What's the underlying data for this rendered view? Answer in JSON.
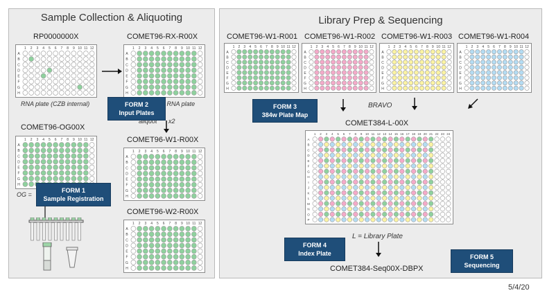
{
  "colors": {
    "green": "#8fd19e",
    "pink": "#f4aac9",
    "yellow": "#fbf3a3",
    "blue": "#b4dcf3",
    "empty": "#ffffff",
    "form_bg": "#1f4e79"
  },
  "left_panel": {
    "title": "Sample Collection & Aliquoting"
  },
  "right_panel": {
    "title": "Library Prep & Sequencing"
  },
  "plates": {
    "rp": {
      "label": "RP0000000X",
      "caption": "RNA plate (CZB internal)"
    },
    "rx": {
      "label": "COMET96-RX-R00X",
      "caption": "e RNA plate"
    },
    "og": {
      "label": "COMET96-OG00X",
      "caption": "OG ="
    },
    "w1": {
      "label": "COMET96-W1-R00X"
    },
    "w2": {
      "label": "COMET96-W2-R00X"
    },
    "r001": {
      "label": "COMET96-W1-R001"
    },
    "r002": {
      "label": "COMET96-W1-R002"
    },
    "r003": {
      "label": "COMET96-W1-R003"
    },
    "r004": {
      "label": "COMET96-W1-R004"
    },
    "l384": {
      "label": "COMET384-L-00X",
      "caption": "L = Library Plate"
    }
  },
  "annotations": {
    "aliquot": "aliquot",
    "x2": "x2",
    "bravo": "BRAVO",
    "seq": "COMET384-Seq00X-DBPX"
  },
  "forms": {
    "form1": {
      "line1": "FORM 1",
      "line2": "Sample Registration"
    },
    "form2": {
      "line1": "FORM 2",
      "line2": "Input Plates"
    },
    "form3": {
      "line1": "FORM 3",
      "line2": "384w Plate Map"
    },
    "form4": {
      "line1": "FORM 4",
      "line2": "Index Plate"
    },
    "form5": {
      "line1": "FORM 5",
      "line2": "Sequencing"
    }
  },
  "footer": {
    "date": "5/4/20"
  },
  "rows96": [
    "A",
    "B",
    "C",
    "D",
    "E",
    "F",
    "G",
    "H"
  ],
  "rows384": [
    "A",
    "B",
    "C",
    "D",
    "E",
    "F",
    "G",
    "H",
    "I",
    "J",
    "K",
    "L",
    "M",
    "N",
    "O",
    "P"
  ]
}
